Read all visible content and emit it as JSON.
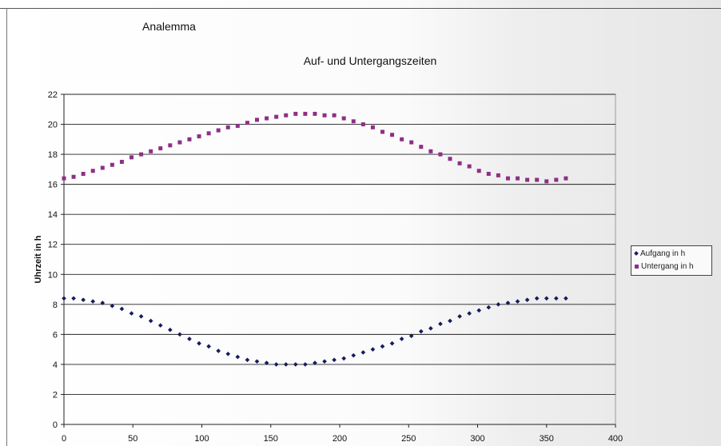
{
  "header": {
    "title": "Analemma"
  },
  "chart_data": {
    "type": "scatter",
    "title": "Auf- und Untergangszeiten",
    "xlabel": "",
    "ylabel": "Uhrzeit in h",
    "xlim": [
      0,
      400
    ],
    "ylim": [
      0,
      22
    ],
    "x_ticks": [
      "0",
      "50",
      "100",
      "150",
      "200",
      "250",
      "300",
      "350",
      "400"
    ],
    "y_ticks": [
      "0",
      "2",
      "4",
      "6",
      "8",
      "10",
      "12",
      "14",
      "16",
      "18",
      "20",
      "22"
    ],
    "grid": "horizontal",
    "legend_position": "right",
    "x": [
      0,
      7,
      14,
      21,
      28,
      35,
      42,
      49,
      56,
      63,
      70,
      77,
      84,
      91,
      98,
      105,
      112,
      119,
      126,
      133,
      140,
      147,
      154,
      161,
      168,
      175,
      182,
      189,
      196,
      203,
      210,
      217,
      224,
      231,
      238,
      245,
      252,
      259,
      266,
      273,
      280,
      287,
      294,
      301,
      308,
      315,
      322,
      329,
      336,
      343,
      350,
      357,
      364
    ],
    "series": [
      {
        "name": "Aufgang in h",
        "color": "#141d5c",
        "marker": "diamond",
        "values": [
          8.4,
          8.4,
          8.3,
          8.2,
          8.1,
          7.9,
          7.7,
          7.4,
          7.2,
          6.9,
          6.6,
          6.3,
          6.0,
          5.7,
          5.4,
          5.2,
          4.9,
          4.7,
          4.5,
          4.3,
          4.2,
          4.1,
          4.0,
          4.0,
          4.0,
          4.0,
          4.1,
          4.2,
          4.3,
          4.4,
          4.6,
          4.8,
          5.0,
          5.2,
          5.4,
          5.7,
          5.9,
          6.2,
          6.4,
          6.7,
          6.9,
          7.2,
          7.4,
          7.6,
          7.8,
          8.0,
          8.1,
          8.2,
          8.3,
          8.4,
          8.4,
          8.4,
          8.4
        ]
      },
      {
        "name": "Untergang in h",
        "color": "#8e2f86",
        "marker": "square",
        "values": [
          16.4,
          16.5,
          16.7,
          16.9,
          17.1,
          17.3,
          17.5,
          17.8,
          18.0,
          18.2,
          18.4,
          18.6,
          18.8,
          19.0,
          19.2,
          19.4,
          19.6,
          19.8,
          19.9,
          20.1,
          20.3,
          20.4,
          20.5,
          20.6,
          20.7,
          20.7,
          20.7,
          20.6,
          20.6,
          20.4,
          20.2,
          20.0,
          19.8,
          19.5,
          19.3,
          19.0,
          18.8,
          18.5,
          18.2,
          18.0,
          17.7,
          17.4,
          17.2,
          16.9,
          16.7,
          16.6,
          16.4,
          16.4,
          16.3,
          16.3,
          16.2,
          16.3,
          16.4
        ]
      }
    ]
  }
}
